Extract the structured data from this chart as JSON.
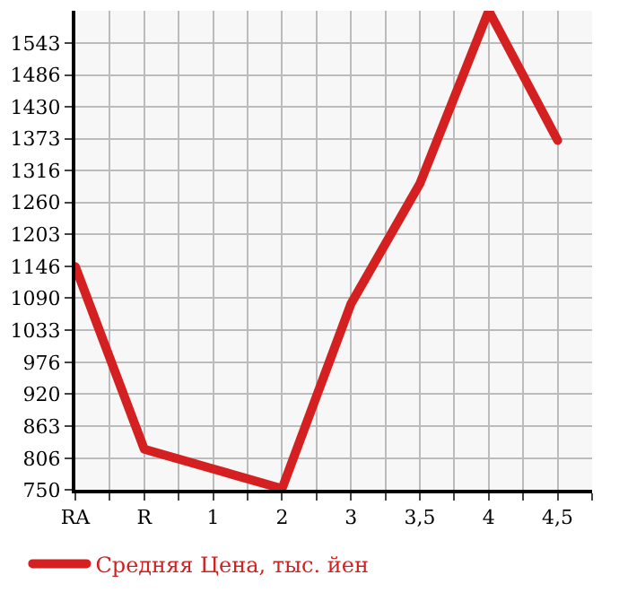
{
  "chart_data": {
    "type": "line",
    "categories": [
      "RA",
      "R",
      "1",
      "2",
      "3",
      "3,5",
      "4",
      "4,5"
    ],
    "series": [
      {
        "name": "Средняя Цена, тыс. йен",
        "color": "#d42020",
        "values": [
          1146,
          822,
          787,
          752,
          1080,
          1293,
          1600,
          1370
        ]
      }
    ],
    "ylim": [
      750,
      1600
    ],
    "yticks": [
      750,
      806,
      863,
      920,
      976,
      1033,
      1090,
      1146,
      1203,
      1260,
      1316,
      1373,
      1430,
      1486,
      1543
    ],
    "grid": true,
    "legend": "bottom left",
    "marker": "none",
    "line_style": "solid"
  }
}
